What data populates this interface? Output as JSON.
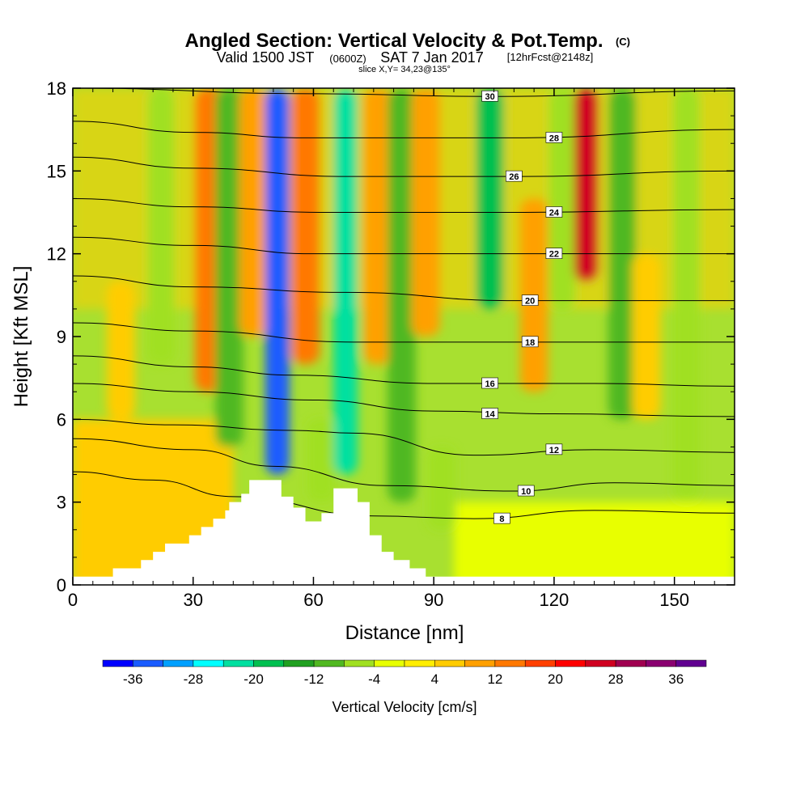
{
  "chart_data": {
    "type": "heatmap",
    "title": "Angled Section: Vertical Velocity & Pot.Temp.",
    "title_suffix": "(C)",
    "subtitle_parts": {
      "valid": "Valid 1500 JST",
      "zulu": "(0600Z)",
      "date": "SAT 7 Jan 2017",
      "forecast": "[12hrFcst@2148z]"
    },
    "slice": "slice X,Y= 34,23@135°",
    "xlabel": "Distance [nm]",
    "ylabel": "Height [Kft MSL]",
    "xlim": [
      0,
      165
    ],
    "ylim": [
      0,
      18
    ],
    "x_ticks": [
      0,
      30,
      60,
      90,
      120,
      150
    ],
    "y_ticks": [
      0,
      3,
      6,
      9,
      12,
      15,
      18
    ],
    "colorbar": {
      "label": "Vertical Velocity [cm/s]",
      "tick_labels": [
        "-36",
        "-28",
        "-20",
        "-12",
        "-4",
        "4",
        "12",
        "20",
        "28",
        "36"
      ],
      "colors": [
        "#0000ff",
        "#1a5cff",
        "#00a0ff",
        "#00ffff",
        "#00e0a0",
        "#00c050",
        "#20a020",
        "#50b820",
        "#a0e020",
        "#e8ff00",
        "#ffee00",
        "#ffcc00",
        "#ffa000",
        "#ff7800",
        "#ff4000",
        "#ff0000",
        "#d00020",
        "#a00050",
        "#8a0070",
        "#600090"
      ]
    },
    "velocity_columns": [
      {
        "x": 12,
        "value": 6,
        "ymin": 6,
        "ymax": 11
      },
      {
        "x": 22,
        "value": -8,
        "ymin": 8,
        "ymax": 18
      },
      {
        "x": 34,
        "value": 14,
        "ymin": 7,
        "ymax": 18
      },
      {
        "x": 39,
        "value": -10,
        "ymin": 5,
        "ymax": 18
      },
      {
        "x": 45,
        "value": 10,
        "ymin": 9,
        "ymax": 18
      },
      {
        "x": 51,
        "value": -34,
        "ymin": 4,
        "ymax": 18
      },
      {
        "x": 58,
        "value": 12,
        "ymin": 8,
        "ymax": 18
      },
      {
        "x": 62,
        "value": -6,
        "ymin": 3,
        "ymax": 6
      },
      {
        "x": 68,
        "value": -22,
        "ymin": 4,
        "ymax": 18
      },
      {
        "x": 76,
        "value": 10,
        "ymin": 8,
        "ymax": 18
      },
      {
        "x": 82,
        "value": -10,
        "ymin": 3,
        "ymax": 18
      },
      {
        "x": 88,
        "value": 10,
        "ymin": 9,
        "ymax": 18
      },
      {
        "x": 92,
        "value": -8,
        "ymin": 2,
        "ymax": 5
      },
      {
        "x": 104,
        "value": -18,
        "ymin": 10,
        "ymax": 18
      },
      {
        "x": 115,
        "value": 8,
        "ymin": 7,
        "ymax": 14
      },
      {
        "x": 122,
        "value": -6,
        "ymin": 10,
        "ymax": 18
      },
      {
        "x": 128,
        "value": 26,
        "ymin": 11,
        "ymax": 18
      },
      {
        "x": 137,
        "value": -12,
        "ymin": 6,
        "ymax": 18
      },
      {
        "x": 143,
        "value": 6,
        "ymin": 6,
        "ymax": 12
      },
      {
        "x": 153,
        "value": -6,
        "ymin": 3,
        "ymax": 18
      }
    ],
    "terrain": [
      [
        0,
        0.3
      ],
      [
        10,
        0.3
      ],
      [
        10,
        0.6
      ],
      [
        17,
        0.6
      ],
      [
        17,
        0.9
      ],
      [
        20,
        0.9
      ],
      [
        20,
        1.2
      ],
      [
        23,
        1.2
      ],
      [
        23,
        1.5
      ],
      [
        29,
        1.5
      ],
      [
        29,
        1.8
      ],
      [
        32,
        1.8
      ],
      [
        32,
        2.1
      ],
      [
        35,
        2.1
      ],
      [
        35,
        2.4
      ],
      [
        38,
        2.4
      ],
      [
        38,
        2.7
      ],
      [
        39,
        2.7
      ],
      [
        39,
        3.0
      ],
      [
        42,
        3.0
      ],
      [
        42,
        3.3
      ],
      [
        44,
        3.3
      ],
      [
        44,
        3.8
      ],
      [
        52,
        3.8
      ],
      [
        52,
        3.2
      ],
      [
        55,
        3.2
      ],
      [
        55,
        2.8
      ],
      [
        58,
        2.8
      ],
      [
        58,
        2.3
      ],
      [
        62,
        2.3
      ],
      [
        62,
        2.6
      ],
      [
        65,
        2.6
      ],
      [
        65,
        3.5
      ],
      [
        71,
        3.5
      ],
      [
        71,
        3.0
      ],
      [
        74,
        3.0
      ],
      [
        74,
        1.8
      ],
      [
        77,
        1.8
      ],
      [
        77,
        1.2
      ],
      [
        80,
        1.2
      ],
      [
        80,
        0.9
      ],
      [
        84,
        0.9
      ],
      [
        84,
        0.6
      ],
      [
        88,
        0.6
      ],
      [
        88,
        0.3
      ],
      [
        165,
        0.3
      ]
    ],
    "theta_contours": [
      {
        "value": 8,
        "points": [
          [
            0,
            4.1
          ],
          [
            20,
            3.8
          ],
          [
            40,
            3.2
          ],
          [
            75,
            2.5
          ],
          [
            100,
            2.4
          ],
          [
            130,
            2.7
          ],
          [
            165,
            2.6
          ]
        ],
        "label_at": [
          107,
          2.4
        ]
      },
      {
        "value": 10,
        "points": [
          [
            0,
            5.3
          ],
          [
            30,
            4.9
          ],
          [
            50,
            4.3
          ],
          [
            78,
            3.6
          ],
          [
            110,
            3.4
          ],
          [
            135,
            3.7
          ],
          [
            165,
            3.6
          ]
        ],
        "label_at": [
          113,
          3.4
        ]
      },
      {
        "value": 12,
        "points": [
          [
            0,
            6.0
          ],
          [
            25,
            5.8
          ],
          [
            55,
            5.6
          ],
          [
            70,
            5.5
          ],
          [
            100,
            4.7
          ],
          [
            130,
            4.9
          ],
          [
            165,
            4.8
          ]
        ],
        "label_at": [
          120,
          4.9
        ]
      },
      {
        "value": 14,
        "points": [
          [
            0,
            7.3
          ],
          [
            30,
            7.0
          ],
          [
            60,
            6.7
          ],
          [
            90,
            6.3
          ],
          [
            120,
            6.2
          ],
          [
            165,
            6.1
          ]
        ],
        "label_at": [
          104,
          6.2
        ]
      },
      {
        "value": 16,
        "points": [
          [
            0,
            8.3
          ],
          [
            30,
            7.9
          ],
          [
            55,
            7.6
          ],
          [
            90,
            7.3
          ],
          [
            130,
            7.3
          ],
          [
            165,
            7.2
          ]
        ],
        "label_at": [
          104,
          7.3
        ]
      },
      {
        "value": 18,
        "points": [
          [
            0,
            9.5
          ],
          [
            30,
            9.2
          ],
          [
            70,
            8.8
          ],
          [
            110,
            8.8
          ],
          [
            165,
            8.8
          ]
        ],
        "label_at": [
          114,
          8.8
        ]
      },
      {
        "value": 20,
        "points": [
          [
            0,
            11.2
          ],
          [
            30,
            10.8
          ],
          [
            68,
            10.6
          ],
          [
            110,
            10.3
          ],
          [
            165,
            10.3
          ]
        ],
        "label_at": [
          114,
          10.3
        ]
      },
      {
        "value": 22,
        "points": [
          [
            0,
            12.6
          ],
          [
            30,
            12.3
          ],
          [
            60,
            12.0
          ],
          [
            110,
            12.0
          ],
          [
            165,
            12.0
          ]
        ],
        "label_at": [
          120,
          12.0
        ]
      },
      {
        "value": 24,
        "points": [
          [
            0,
            14.0
          ],
          [
            30,
            13.7
          ],
          [
            62,
            13.5
          ],
          [
            110,
            13.5
          ],
          [
            165,
            13.6
          ]
        ],
        "label_at": [
          120,
          13.5
        ]
      },
      {
        "value": 26,
        "points": [
          [
            0,
            15.5
          ],
          [
            30,
            15.1
          ],
          [
            68,
            14.8
          ],
          [
            110,
            14.8
          ],
          [
            165,
            15.0
          ]
        ],
        "label_at": [
          110,
          14.8
        ]
      },
      {
        "value": 28,
        "points": [
          [
            0,
            16.8
          ],
          [
            30,
            16.4
          ],
          [
            58,
            16.2
          ],
          [
            110,
            16.2
          ],
          [
            165,
            16.5
          ]
        ],
        "label_at": [
          120,
          16.2
        ]
      },
      {
        "value": 30,
        "points": [
          [
            0,
            18.0
          ],
          [
            60,
            17.8
          ],
          [
            104,
            17.7
          ],
          [
            165,
            17.9
          ]
        ],
        "label_at": [
          104,
          17.7
        ]
      }
    ]
  }
}
